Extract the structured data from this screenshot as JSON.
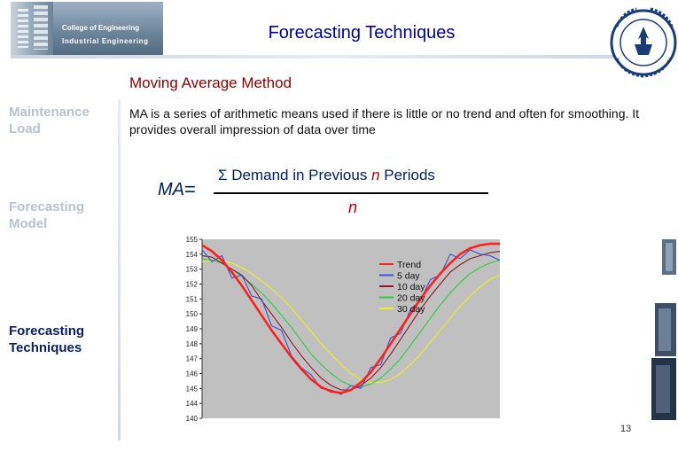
{
  "header": {
    "logo_line1": "College of Engineering",
    "logo_line2": "Industrial Engineering",
    "title": "Forecasting Techniques"
  },
  "sidebar": {
    "items": [
      {
        "label_line1": "Maintenance",
        "label_line2": "Load",
        "state": "inactive"
      },
      {
        "label_line1": "Forecasting",
        "label_line2": "Model",
        "state": "inactive"
      },
      {
        "label_line1": "Forecasting",
        "label_line2": "Techniques",
        "state": "active"
      }
    ]
  },
  "content": {
    "subtitle": "Moving Average Method",
    "description": "MA is a series of arithmetic means used if there is little or no trend and often for smoothing. It provides overall impression of data over time",
    "formula": {
      "lhs": "MA",
      "equals": "=",
      "sigma": "Σ",
      "numerator_text": "Demand in  Previous",
      "numerator_var": "n",
      "numerator_tail": "Periods",
      "denominator": "n"
    }
  },
  "chart_data": {
    "type": "line",
    "title": "",
    "xlabel": "",
    "ylabel": "",
    "ylim": [
      140,
      155
    ],
    "yticks": [
      "155",
      "154",
      "153",
      "152",
      "151",
      "150",
      "149",
      "148",
      "147",
      "146",
      "145",
      "144",
      "140"
    ],
    "x": [
      0,
      2,
      4,
      6,
      8,
      10,
      12,
      14,
      16,
      18,
      20,
      22,
      24,
      26,
      28,
      30,
      32,
      34,
      36,
      38,
      40,
      42,
      44,
      46,
      48,
      50,
      52,
      54,
      56,
      58,
      60
    ],
    "legend": [
      "Trend",
      "5 day",
      "10 day",
      "20 day",
      "30 day"
    ],
    "legend_position": "top-right",
    "series": [
      {
        "name": "Trend",
        "color": "#ff2020",
        "values": [
          154.6,
          154.2,
          153.6,
          152.8,
          151.9,
          150.9,
          149.9,
          148.9,
          148.0,
          147.1,
          146.3,
          145.6,
          145.1,
          144.8,
          144.7,
          144.9,
          145.4,
          146.1,
          147.0,
          148.0,
          149.0,
          150.0,
          151.0,
          151.9,
          152.7,
          153.4,
          154.0,
          154.4,
          154.6,
          154.7,
          154.7
        ]
      },
      {
        "name": "5 day",
        "color": "#3b4fd8",
        "values": [
          154.3,
          153.5,
          153.9,
          152.4,
          152.6,
          151.2,
          151.0,
          149.2,
          148.9,
          147.2,
          146.4,
          145.9,
          145.0,
          144.9,
          144.6,
          145.2,
          145.0,
          146.4,
          146.6,
          148.4,
          148.7,
          150.3,
          150.9,
          152.3,
          152.6,
          154.0,
          153.7,
          154.3,
          154.0,
          153.9,
          153.6
        ]
      },
      {
        "name": "10 day",
        "color": "#8b1a2b",
        "values": [
          153.9,
          153.8,
          153.4,
          153.0,
          152.6,
          151.9,
          150.9,
          150.0,
          149.1,
          148.1,
          147.2,
          146.4,
          145.7,
          145.2,
          144.9,
          144.9,
          145.2,
          145.7,
          146.4,
          147.3,
          148.3,
          149.3,
          150.3,
          151.2,
          152.0,
          152.8,
          153.3,
          153.7,
          153.9,
          154.1,
          154.2
        ]
      },
      {
        "name": "20 day",
        "color": "#2ecc40",
        "values": [
          153.7,
          153.6,
          153.4,
          153.0,
          152.5,
          152.0,
          151.4,
          150.7,
          149.9,
          149.1,
          148.2,
          147.3,
          146.6,
          146.0,
          145.5,
          145.2,
          145.1,
          145.3,
          145.7,
          146.3,
          147.0,
          147.9,
          148.8,
          149.7,
          150.6,
          151.4,
          152.1,
          152.7,
          153.1,
          153.4,
          153.6
        ]
      },
      {
        "name": "30 day",
        "color": "#f2ee20",
        "values": [
          153.5,
          153.6,
          153.6,
          153.4,
          153.1,
          152.7,
          152.2,
          151.7,
          151.1,
          150.4,
          149.6,
          148.8,
          148.0,
          147.3,
          146.6,
          146.0,
          145.6,
          145.4,
          145.4,
          145.6,
          146.0,
          146.6,
          147.3,
          148.1,
          148.9,
          149.7,
          150.5,
          151.2,
          151.8,
          152.3,
          152.6
        ]
      }
    ]
  },
  "footer": {
    "page_number": "13"
  },
  "colors": {
    "title": "#0000a0",
    "subtitle": "#8b0000",
    "sidebar_active": "#0a1f5c",
    "sidebar_inactive": "#b8c3cf",
    "chart_background": "#c0c0c0"
  }
}
